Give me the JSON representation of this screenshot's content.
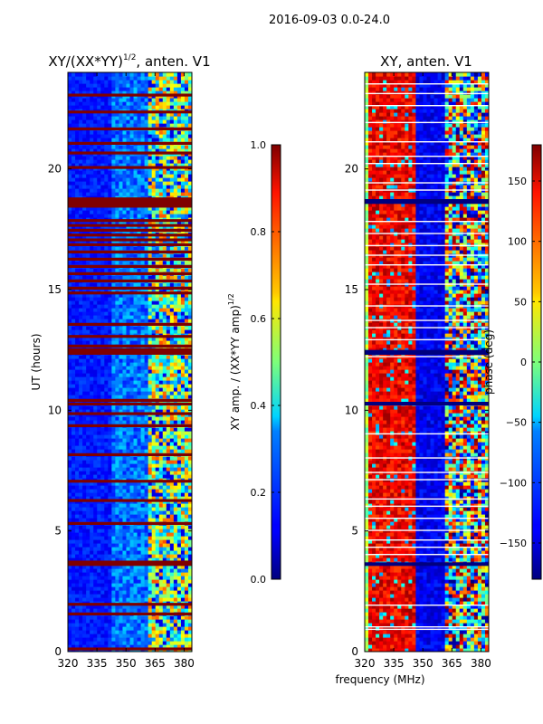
{
  "figure_title": "2016-09-03 0.0-24.0",
  "colors": {
    "cbar_low": "#00007f",
    "cbar_high": "#7f0000",
    "spine": "#000000"
  },
  "chart_data": [
    {
      "type": "heatmap",
      "title": "XY/(XX*YY)^1/2, anten. V1",
      "title_main": "XY/(XX*YY)",
      "title_sup": "1/2",
      "title_tail": ", anten. V1",
      "xlabel": "",
      "ylabel": "UT (hours)",
      "xlim": [
        320,
        384
      ],
      "ylim": [
        0,
        24
      ],
      "xticks": [
        320,
        335,
        350,
        365,
        380
      ],
      "yticks": [
        0,
        5,
        10,
        15,
        20
      ],
      "colorbar": {
        "label": "XY amp. / (XX*YY amp)^1/2",
        "label_main": "XY amp. / (XX*YY amp)",
        "label_sup": "1/2",
        "range": [
          0.0,
          1.0
        ],
        "ticks": [
          "0.0",
          "0.2",
          "0.4",
          "0.6",
          "0.8",
          "1.0"
        ],
        "tick_values": [
          0.0,
          0.2,
          0.4,
          0.6,
          0.8,
          1.0
        ]
      },
      "saturated_hours": [
        0.05,
        1.5,
        1.9,
        3.6,
        3.65,
        5.25,
        6.2,
        7.0,
        8.1,
        9.3,
        9.8,
        10.2,
        10.35,
        12.3,
        12.45,
        12.6,
        13.0,
        13.5,
        14.8,
        15.0,
        15.3,
        15.6,
        15.9,
        16.2,
        16.5,
        16.8,
        17.0,
        17.2,
        17.4,
        17.6,
        17.8,
        18.4,
        18.5,
        18.6,
        18.7,
        20.0,
        20.6,
        21.0,
        21.6,
        22.3,
        23.0
      ]
    },
    {
      "type": "heatmap",
      "title": "XY, anten. V1",
      "xlabel": "frequency (MHz)",
      "ylabel": "",
      "xlim": [
        320,
        384
      ],
      "ylim": [
        0,
        24
      ],
      "xticks": [
        320,
        335,
        350,
        365,
        380
      ],
      "yticks": [
        0,
        5,
        10,
        15,
        20
      ],
      "colorbar": {
        "label": "phase (deg)",
        "range": [
          -180,
          180
        ],
        "ticks": [
          "−150",
          "−100",
          "−50",
          "0",
          "50",
          "100",
          "150"
        ],
        "tick_values": [
          -150,
          -100,
          -50,
          0,
          50,
          100,
          150
        ]
      },
      "blank_hours": [
        0.9,
        1.0,
        1.9,
        3.6,
        4.0,
        4.3,
        4.6,
        5.0,
        5.5,
        6.0,
        6.3,
        7.1,
        7.4,
        8.0,
        9.0,
        10.2,
        10.3,
        12.2,
        12.4,
        12.9,
        13.4,
        13.7,
        14.3,
        15.2,
        16.0,
        16.4,
        16.8,
        17.3,
        17.8,
        18.6,
        19.1,
        19.4,
        20.2,
        20.5,
        21.1,
        21.9,
        22.6,
        23.1,
        23.5
      ]
    }
  ]
}
